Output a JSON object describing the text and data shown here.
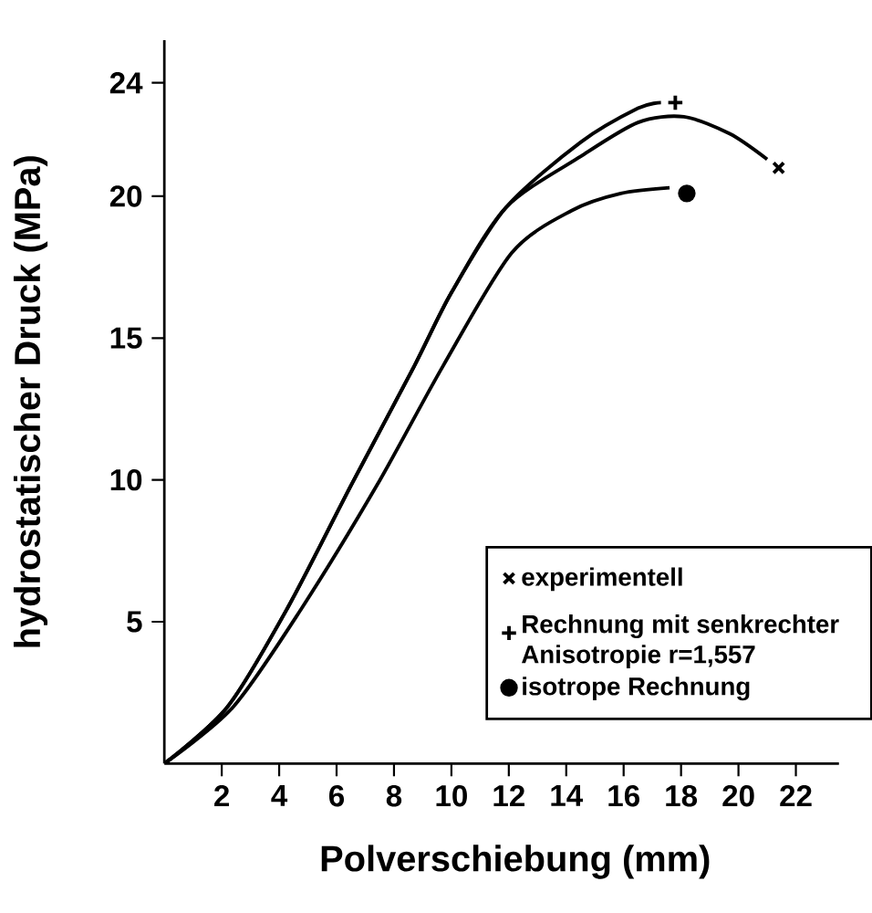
{
  "chart_data": {
    "type": "line",
    "xlabel": "Polverschiebung (mm)",
    "ylabel": "hydrostatischer Druck (MPa)",
    "xlim": [
      0,
      23.5
    ],
    "ylim": [
      0,
      25.5
    ],
    "xticks": [
      2,
      4,
      6,
      8,
      10,
      12,
      14,
      16,
      18,
      20,
      22
    ],
    "yticks": [
      5,
      10,
      15,
      20,
      24
    ],
    "grid": false,
    "legend": "bottom right",
    "series": [
      {
        "color": "#000000",
        "x": [
          0,
          2.2,
          4.3,
          6.5,
          8.7,
          10.0,
          11.9,
          14.5,
          16.5,
          18.1,
          19.7,
          21.0
        ],
        "values": [
          0,
          2.0,
          5.5,
          9.8,
          14.0,
          16.6,
          19.6,
          21.4,
          22.6,
          22.8,
          22.2,
          21.3
        ]
      },
      {
        "color": "#000000",
        "x": [
          0,
          2.2,
          4.3,
          6.5,
          8.7,
          10.0,
          11.9,
          14.5,
          16.5,
          17.3
        ],
        "values": [
          0,
          2.0,
          5.5,
          9.8,
          14.0,
          16.6,
          19.6,
          21.9,
          23.1,
          23.3
        ]
      },
      {
        "color": "#000000",
        "x": [
          0,
          2.4,
          4.8,
          7.4,
          9.7,
          12.1,
          14.2,
          15.9,
          17.6
        ],
        "values": [
          0,
          2.0,
          5.5,
          9.8,
          14.0,
          18.0,
          19.5,
          20.1,
          20.3
        ]
      },
      {
        "type": "scatter",
        "name": "experimentell",
        "marker": "cross",
        "color": "#000000",
        "x": [
          21.4
        ],
        "values": [
          21.0
        ]
      },
      {
        "type": "scatter",
        "name": "Rechnung mit senkrechter Anisotropie r=1,557",
        "marker": "plus",
        "color": "#000000",
        "x": [
          17.8
        ],
        "values": [
          23.3
        ]
      },
      {
        "type": "scatter",
        "name": "isotrope Rechnung",
        "marker": "circle",
        "color": "#000000",
        "x": [
          18.2
        ],
        "values": [
          20.1
        ]
      }
    ]
  }
}
